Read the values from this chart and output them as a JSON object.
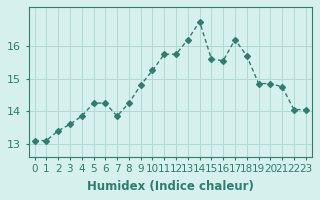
{
  "x": [
    0,
    1,
    2,
    3,
    4,
    5,
    6,
    7,
    8,
    9,
    10,
    11,
    12,
    13,
    14,
    15,
    16,
    17,
    18,
    19,
    20,
    21,
    22,
    23
  ],
  "y": [
    13.1,
    13.1,
    13.4,
    13.6,
    13.85,
    14.25,
    14.25,
    13.85,
    14.25,
    14.8,
    15.25,
    15.75,
    15.75,
    16.2,
    16.75,
    15.6,
    15.55,
    16.2,
    15.7,
    14.85,
    14.85,
    14.75,
    14.05,
    14.05
  ],
  "line_color": "#2e7d6e",
  "marker": "D",
  "marker_size": 3,
  "bg_color": "#d6f0ed",
  "grid_color": "#b0d8d2",
  "xlabel": "Humidex (Indice chaleur)",
  "ylabel": "",
  "yticks": [
    13,
    14,
    15,
    16
  ],
  "ylim": [
    12.6,
    17.2
  ],
  "xlim": [
    -0.5,
    23.5
  ],
  "title_color": "#2e7d6e",
  "tick_color": "#2e7d6e",
  "label_color": "#2e7d6e",
  "axis_color": "#2e7d6e",
  "font_size": 7.5
}
